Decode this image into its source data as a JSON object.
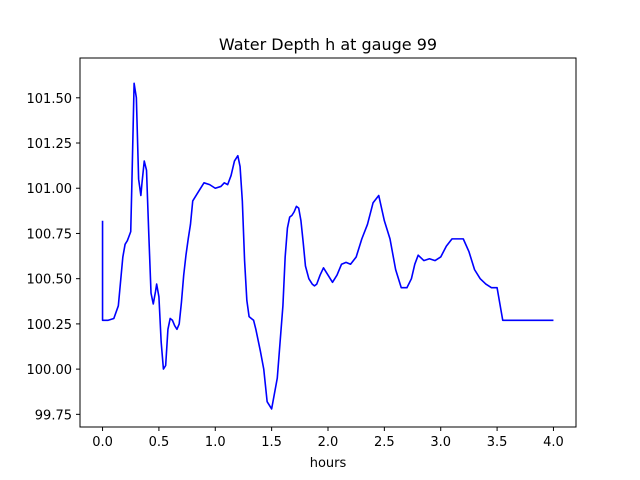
{
  "chart_data": {
    "type": "line",
    "title": "Water Depth h at gauge 99",
    "xlabel": "hours",
    "ylabel": "",
    "xlim": [
      -0.2,
      4.2
    ],
    "ylim": [
      99.68,
      101.72
    ],
    "x_ticks": [
      0.0,
      0.5,
      1.0,
      1.5,
      2.0,
      2.5,
      3.0,
      3.5,
      4.0
    ],
    "x_tick_labels": [
      "0.0",
      "0.5",
      "1.0",
      "1.5",
      "2.0",
      "2.5",
      "3.0",
      "3.5",
      "4.0"
    ],
    "y_ticks": [
      99.75,
      100.0,
      100.25,
      100.5,
      100.75,
      101.0,
      101.25,
      101.5
    ],
    "y_tick_labels": [
      "99.75",
      "100.00",
      "100.25",
      "100.50",
      "100.75",
      "101.00",
      "101.25",
      "101.50"
    ],
    "grid": false,
    "legend": "none",
    "series_color": "#0000ff",
    "series": [
      {
        "x": [
          0.0,
          0.0,
          0.0,
          0.05,
          0.1,
          0.14,
          0.18,
          0.2,
          0.22,
          0.25,
          0.26,
          0.28,
          0.3,
          0.32,
          0.34,
          0.35,
          0.37,
          0.39,
          0.41,
          0.43,
          0.45,
          0.47,
          0.48,
          0.5,
          0.52,
          0.54,
          0.56,
          0.58,
          0.6,
          0.62,
          0.64,
          0.66,
          0.68,
          0.7,
          0.72,
          0.74,
          0.76,
          0.78,
          0.8,
          0.85,
          0.9,
          0.95,
          1.0,
          1.05,
          1.08,
          1.11,
          1.14,
          1.17,
          1.2,
          1.22,
          1.24,
          1.26,
          1.28,
          1.3,
          1.32,
          1.34,
          1.36,
          1.38,
          1.4,
          1.43,
          1.46,
          1.5,
          1.55,
          1.6,
          1.62,
          1.64,
          1.66,
          1.68,
          1.7,
          1.72,
          1.74,
          1.76,
          1.78,
          1.8,
          1.83,
          1.86,
          1.88,
          1.9,
          1.93,
          1.96,
          2.0,
          2.04,
          2.08,
          2.12,
          2.16,
          2.2,
          2.25,
          2.3,
          2.35,
          2.4,
          2.45,
          2.5,
          2.55,
          2.6,
          2.65,
          2.7,
          2.74,
          2.77,
          2.8,
          2.85,
          2.9,
          2.95,
          3.0,
          3.05,
          3.1,
          3.15,
          3.2,
          3.25,
          3.3,
          3.35,
          3.4,
          3.45,
          3.5,
          3.55,
          3.6,
          3.65,
          3.7,
          3.75,
          3.8,
          3.85,
          3.9,
          3.95,
          4.0
        ],
        "y": [
          100.82,
          100.27,
          100.27,
          100.27,
          100.28,
          100.35,
          100.62,
          100.69,
          100.71,
          100.76,
          101.02,
          101.58,
          101.5,
          101.05,
          100.96,
          101.03,
          101.15,
          101.1,
          100.75,
          100.42,
          100.36,
          100.43,
          100.47,
          100.4,
          100.15,
          100.0,
          100.02,
          100.22,
          100.28,
          100.27,
          100.24,
          100.22,
          100.25,
          100.37,
          100.52,
          100.63,
          100.72,
          100.8,
          100.93,
          100.98,
          101.03,
          101.02,
          101.0,
          101.01,
          101.03,
          101.02,
          101.07,
          101.15,
          101.18,
          101.12,
          100.93,
          100.6,
          100.38,
          100.29,
          100.28,
          100.27,
          100.22,
          100.16,
          100.1,
          100.0,
          99.82,
          99.78,
          99.95,
          100.35,
          100.62,
          100.78,
          100.84,
          100.85,
          100.87,
          100.9,
          100.89,
          100.82,
          100.7,
          100.57,
          100.5,
          100.47,
          100.46,
          100.47,
          100.52,
          100.56,
          100.52,
          100.48,
          100.52,
          100.58,
          100.59,
          100.58,
          100.62,
          100.72,
          100.8,
          100.92,
          100.96,
          100.82,
          100.72,
          100.55,
          100.45,
          100.45,
          100.5,
          100.58,
          100.63,
          100.6,
          100.61,
          100.6,
          100.62,
          100.68,
          100.72,
          100.72,
          100.72,
          100.65,
          100.55,
          100.5,
          100.47,
          100.45,
          100.45,
          100.27,
          100.27,
          100.27,
          100.27,
          100.27,
          100.27,
          100.27,
          100.27,
          100.27,
          100.27
        ]
      }
    ]
  }
}
